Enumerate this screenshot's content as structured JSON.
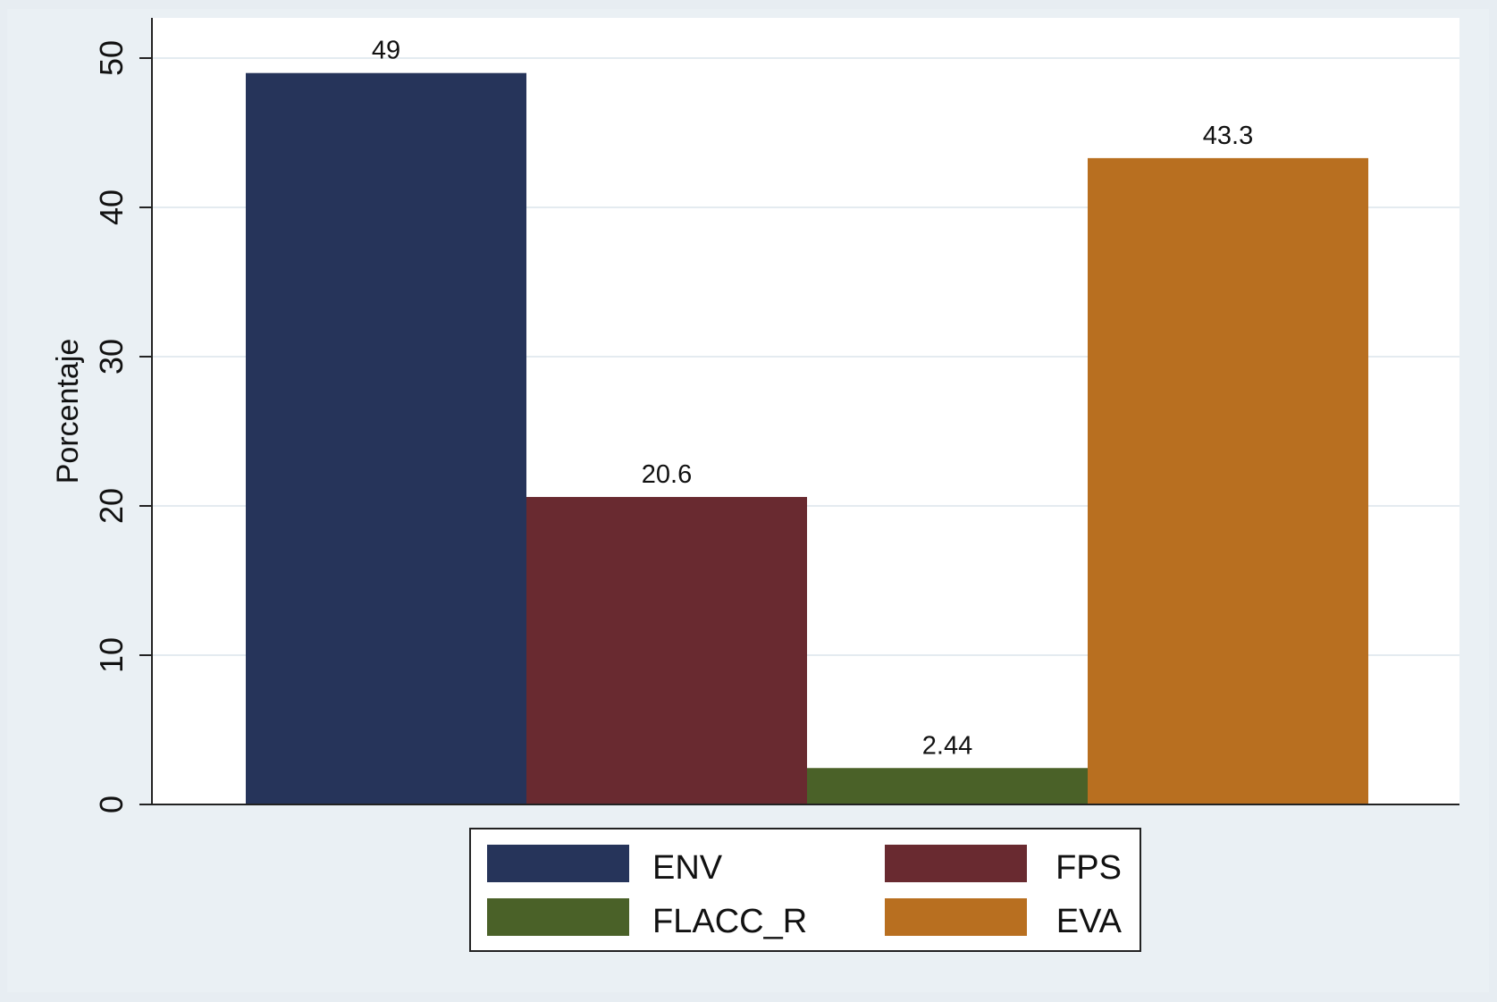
{
  "chart_data": {
    "type": "bar",
    "title": "",
    "xlabel": "",
    "ylabel": "Porcentaje",
    "ylim": [
      0,
      52.5
    ],
    "yticks": [
      0,
      10,
      20,
      30,
      40,
      50
    ],
    "grid": true,
    "legend_position": "bottom",
    "series": [
      {
        "name": "ENV",
        "value": 49,
        "label": "49",
        "color": "#26345a"
      },
      {
        "name": "FPS",
        "value": 20.6,
        "label": "20.6",
        "color": "#692a30"
      },
      {
        "name": "FLACC_R",
        "value": 2.44,
        "label": "2.44",
        "color": "#4a6128"
      },
      {
        "name": "EVA",
        "value": 43.3,
        "label": "43.3",
        "color": "#b86f20"
      }
    ]
  }
}
